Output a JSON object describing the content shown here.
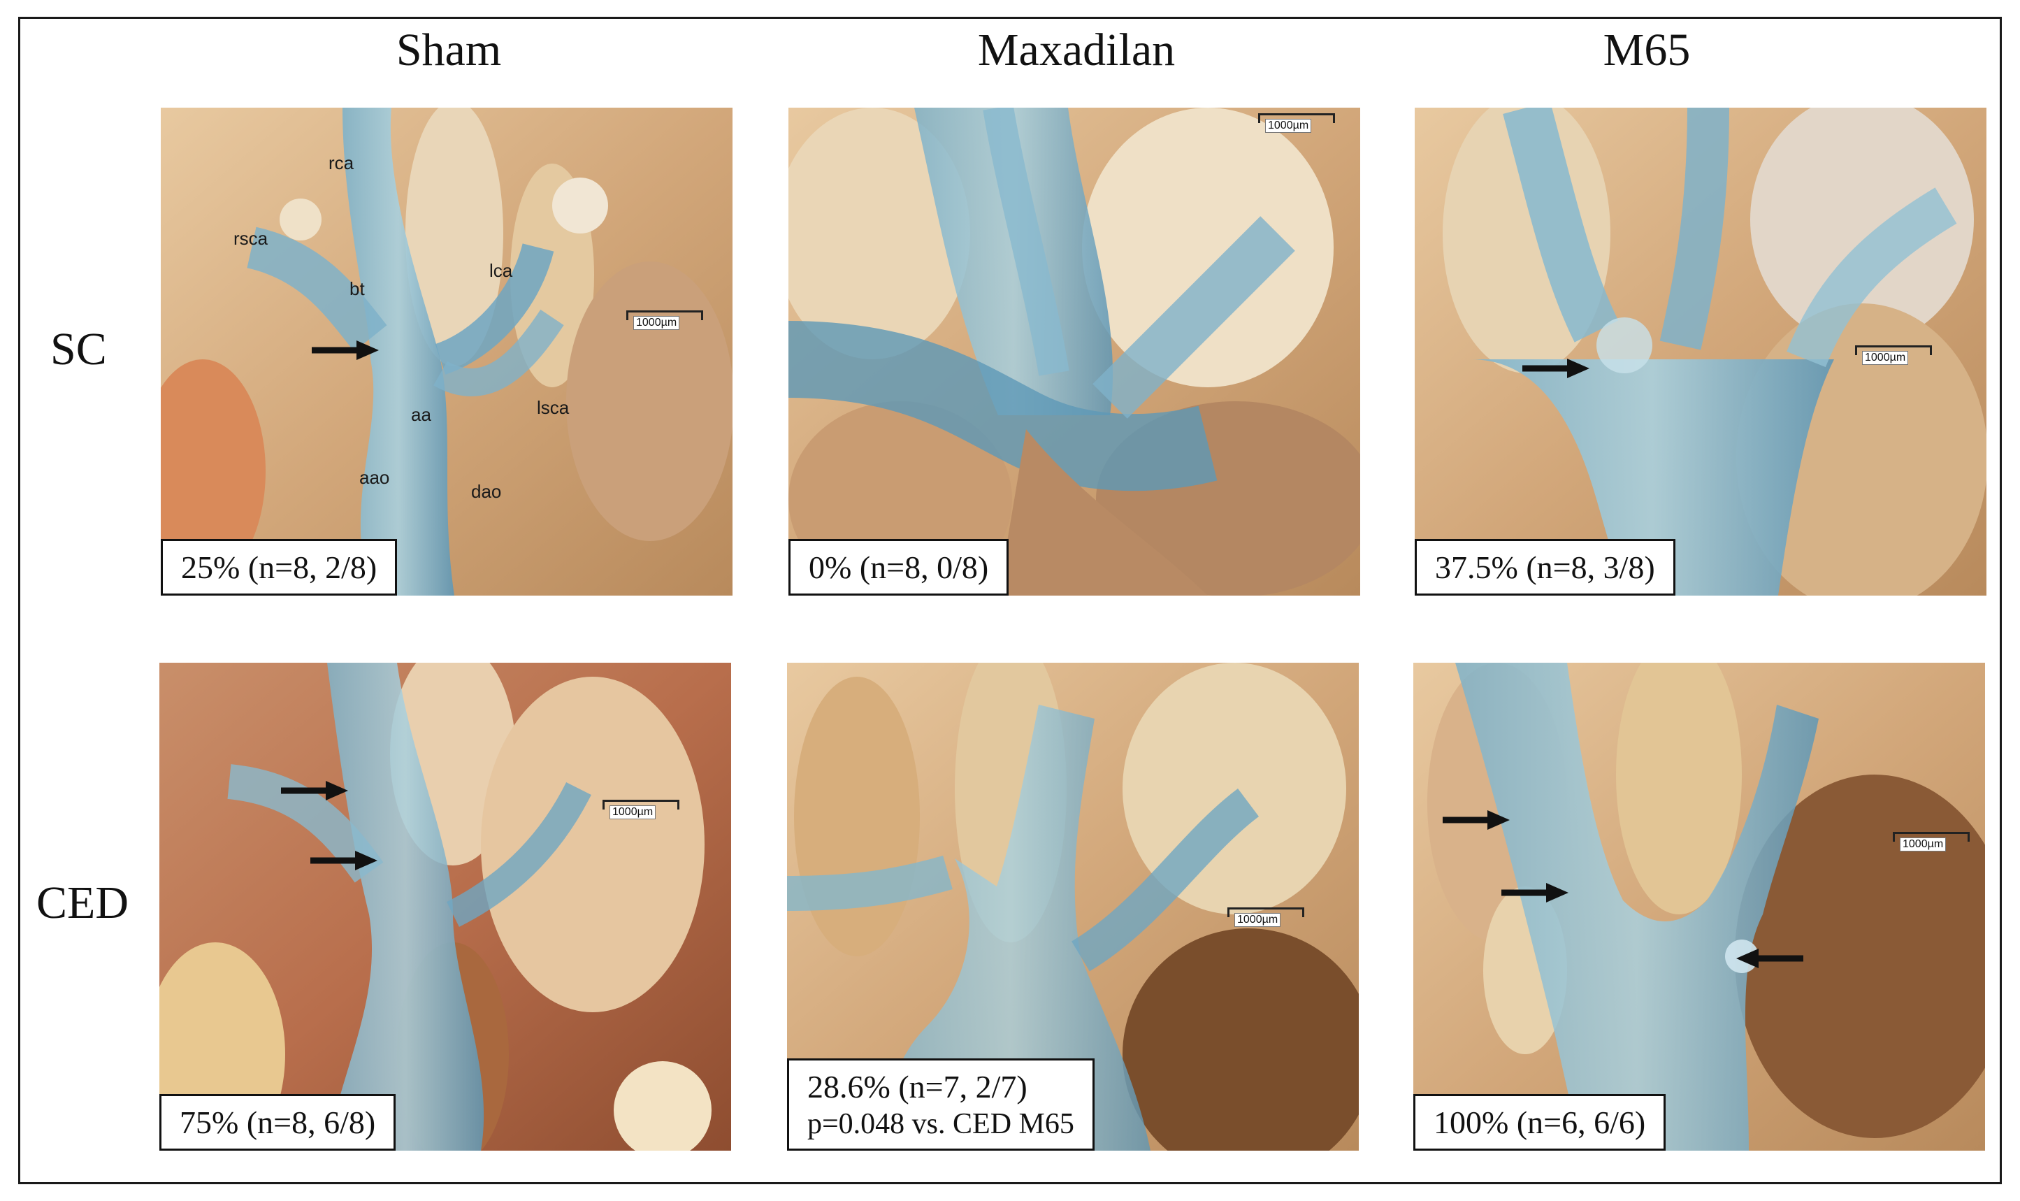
{
  "columns": [
    "Sham",
    "Maxadilan",
    "M65"
  ],
  "rows": [
    "SC",
    "CED"
  ],
  "panels": {
    "sc_sham": {
      "caption": "25% (n=8, 2/8)",
      "scale": "1000µm"
    },
    "sc_maxadilan": {
      "caption": "0% (n=8, 0/8)",
      "scale": "1000µm"
    },
    "sc_m65": {
      "caption": "37.5% (n=8, 3/8)",
      "scale": "1000µm"
    },
    "ced_sham": {
      "caption": "75% (n=8, 6/8)",
      "scale": "1000µm"
    },
    "ced_maxadilan": {
      "caption": "28.6% (n=7, 2/7)",
      "caption_sub": "p=0.048 vs. CED M65",
      "scale": "1000µm"
    },
    "ced_m65": {
      "caption": "100% (n=6, 6/6)",
      "scale": "1000µm"
    }
  },
  "anatomy_labels": {
    "rca": "rca",
    "rsca": "rsca",
    "bt": "bt",
    "lca": "lca",
    "aa": "aa",
    "lsca": "lsca",
    "aao": "aao",
    "dao": "dao"
  },
  "colors": {
    "tissue": "#d9b48a",
    "vessel": "#6aa3c0",
    "blood": "#9a4a2a"
  }
}
